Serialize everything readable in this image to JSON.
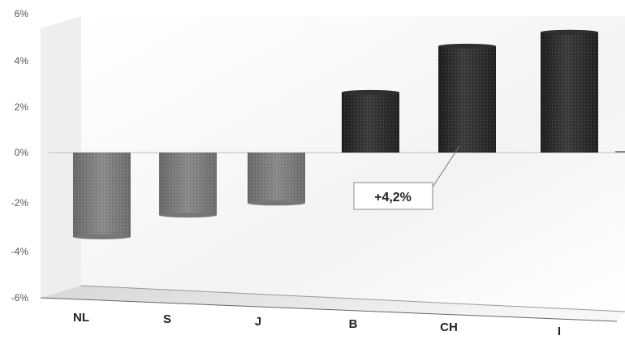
{
  "chart_data": {
    "type": "bar",
    "categories": [
      "NL",
      "S",
      "J",
      "B",
      "CH",
      "I"
    ],
    "values": [
      -3.5,
      -2.6,
      -2.1,
      2.6,
      4.6,
      5.2
    ],
    "ylim": [
      -6,
      6
    ],
    "yticks": [
      "6%",
      "4%",
      "2%",
      "0%",
      "-2%",
      "-4%",
      "-6%"
    ],
    "annotation": "+4,2%",
    "colors": {
      "positive": "#2f2f2f",
      "negative": "#777777",
      "floor": "#e4e4e4"
    }
  }
}
